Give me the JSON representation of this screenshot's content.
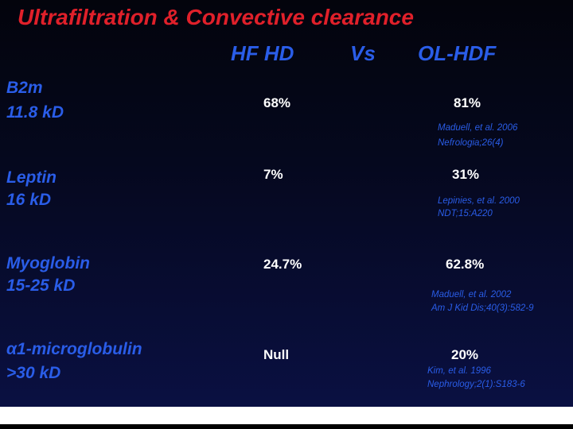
{
  "title": "Ultrafiltration & Convective clearance",
  "header": {
    "left": "HF HD",
    "vs": "Vs",
    "right": "OL-HDF"
  },
  "rows": [
    {
      "label": "B2m",
      "size": "11.8 kD",
      "hf_hd": "68%",
      "ol_hdf": "81%",
      "citation": [
        "Maduell, et al. 2006",
        "Nefrologia;26(4)"
      ]
    },
    {
      "label": "Leptin",
      "size": "16 kD",
      "hf_hd": "7%",
      "ol_hdf": "31%",
      "citation": [
        "Lepinies, et al. 2000",
        "NDT;15:A220"
      ]
    },
    {
      "label": "Myoglobin",
      "size": "15-25 kD",
      "hf_hd": "24.7%",
      "ol_hdf": "62.8%",
      "citation": [
        "Maduell, et al. 2002",
        "Am J Kid Dis;40(3):582-9"
      ]
    },
    {
      "label": "α1-microglobulin",
      "size": ">30 kD",
      "hf_hd": "Null",
      "ol_hdf": "20%",
      "citation": [
        "Kim, et al. 1996",
        "Nephrology;2(1):S183-6"
      ]
    }
  ]
}
